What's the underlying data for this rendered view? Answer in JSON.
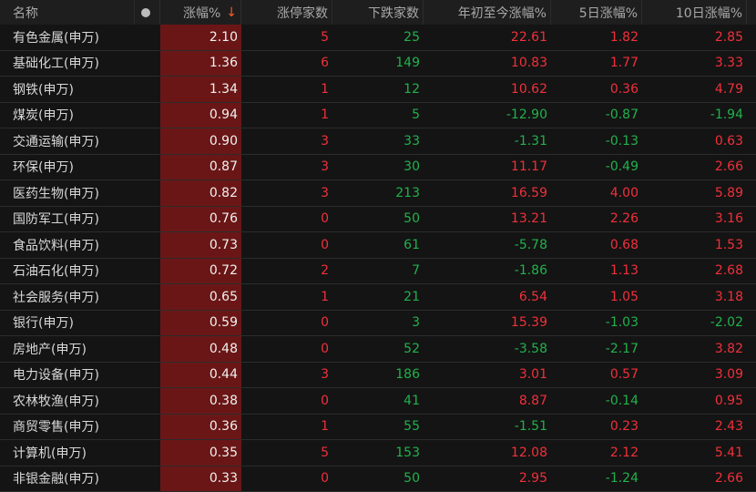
{
  "header": {
    "name": "名称",
    "change": "涨幅%",
    "sort_icon": "arrow-down",
    "limit_up": "涨停家数",
    "decliners": "下跌家数",
    "ytd": "年初至今涨幅%",
    "d5": "5日涨幅%",
    "d10": "10日涨幅%"
  },
  "colors": {
    "up": "#f0303a",
    "down": "#22b14c",
    "highlight_bg": "#6b1616"
  },
  "rows": [
    [
      "有色金属(申万)",
      "2.10",
      "5",
      "25",
      "22.61",
      "1.82",
      "2.85"
    ],
    [
      "基础化工(申万)",
      "1.36",
      "6",
      "149",
      "10.83",
      "1.77",
      "3.33"
    ],
    [
      "钢铁(申万)",
      "1.34",
      "1",
      "12",
      "10.62",
      "0.36",
      "4.79"
    ],
    [
      "煤炭(申万)",
      "0.94",
      "1",
      "5",
      "-12.90",
      "-0.87",
      "-1.94"
    ],
    [
      "交通运输(申万)",
      "0.90",
      "3",
      "33",
      "-1.31",
      "-0.13",
      "0.63"
    ],
    [
      "环保(申万)",
      "0.87",
      "3",
      "30",
      "11.17",
      "-0.49",
      "2.66"
    ],
    [
      "医药生物(申万)",
      "0.82",
      "3",
      "213",
      "16.59",
      "4.00",
      "5.89"
    ],
    [
      "国防军工(申万)",
      "0.76",
      "0",
      "50",
      "13.21",
      "2.26",
      "3.16"
    ],
    [
      "食品饮料(申万)",
      "0.73",
      "0",
      "61",
      "-5.78",
      "0.68",
      "1.53"
    ],
    [
      "石油石化(申万)",
      "0.72",
      "2",
      "7",
      "-1.86",
      "1.13",
      "2.68"
    ],
    [
      "社会服务(申万)",
      "0.65",
      "1",
      "21",
      "6.54",
      "1.05",
      "3.18"
    ],
    [
      "银行(申万)",
      "0.59",
      "0",
      "3",
      "15.39",
      "-1.03",
      "-2.02"
    ],
    [
      "房地产(申万)",
      "0.48",
      "0",
      "52",
      "-3.58",
      "-2.17",
      "3.82"
    ],
    [
      "电力设备(申万)",
      "0.44",
      "3",
      "186",
      "3.01",
      "0.57",
      "3.09"
    ],
    [
      "农林牧渔(申万)",
      "0.38",
      "0",
      "41",
      "8.87",
      "-0.14",
      "0.95"
    ],
    [
      "商贸零售(申万)",
      "0.36",
      "1",
      "55",
      "-1.51",
      "0.23",
      "2.43"
    ],
    [
      "计算机(申万)",
      "0.35",
      "5",
      "153",
      "12.08",
      "2.12",
      "5.41"
    ],
    [
      "非银金融(申万)",
      "0.33",
      "0",
      "50",
      "2.95",
      "-1.24",
      "2.66"
    ]
  ]
}
